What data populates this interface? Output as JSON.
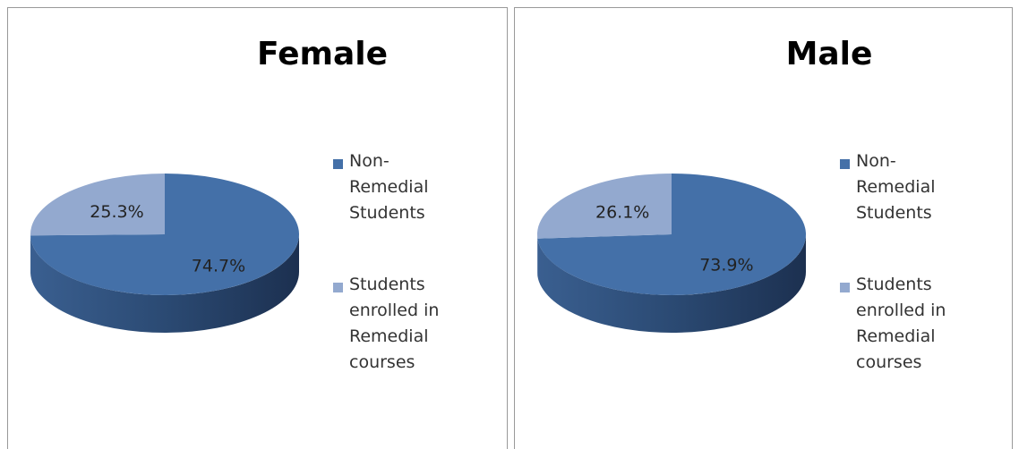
{
  "chart_data": [
    {
      "type": "pie",
      "title": "Female",
      "categories": [
        "Non-Remedial Students",
        "Students enrolled in Remedial courses"
      ],
      "values": [
        74.7,
        25.3
      ],
      "value_labels": [
        "74.7%",
        "25.3%"
      ],
      "colors": [
        "#4470a8",
        "#93a9cf"
      ],
      "legend": "right"
    },
    {
      "type": "pie",
      "title": "Male",
      "categories": [
        "Non-Remedial Students",
        "Students enrolled in Remedial courses"
      ],
      "values": [
        73.9,
        26.1
      ],
      "value_labels": [
        "73.9%",
        "26.1%"
      ],
      "colors": [
        "#4470a8",
        "#93a9cf"
      ],
      "legend": "right"
    }
  ]
}
